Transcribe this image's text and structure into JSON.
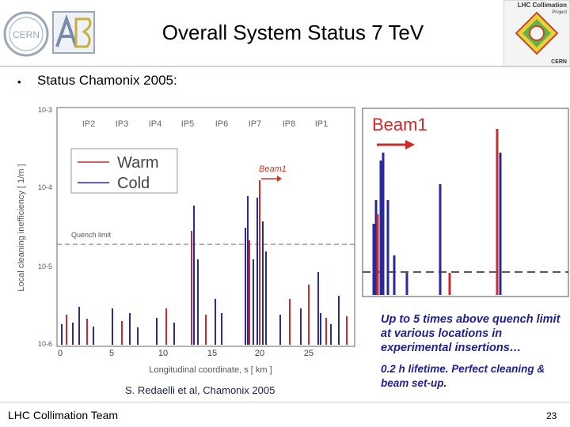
{
  "header": {
    "title": "Overall System Status 7 TeV",
    "logo_left_text": "CERN",
    "logo_right_text": "LHC Collimation",
    "logo_right_sub": "Project",
    "logo_right_cern": "CERN"
  },
  "bullet": {
    "symbol": "•",
    "text": "Status Chamonix 2005:"
  },
  "main_plot": {
    "ylabel": "Local cleaning inefficiency [ 1/m ]",
    "xlabel": "Longitudinal coordinate, s [ km ]",
    "ip_labels": [
      "IP2",
      "IP3",
      "IP4",
      "IP5",
      "IP6",
      "IP7",
      "IP8",
      "IP1"
    ],
    "x_ticks": [
      "0",
      "5",
      "10",
      "15",
      "20",
      "25"
    ],
    "y_ticks": [
      "10-3",
      "10-4",
      "10-5",
      "10-6"
    ],
    "legend": [
      "Warm",
      "Cold"
    ],
    "beam_label": "Beam1",
    "quench_label": "Quench limit",
    "credit": "S. Redaelli et al, Chamonix 2005",
    "colors": {
      "warm": "#cc2a2a",
      "cold": "#2a2a9a",
      "quench": "#666666"
    }
  },
  "inset_plot": {
    "beam_label": "Beam1"
  },
  "notes": {
    "note1": "Up to 5 times above quench limit at various locations in experimental insertions…",
    "note2": "0.2 h lifetime. Perfect cleaning & beam set-up."
  },
  "footer": {
    "left": "LHC Collimation Team",
    "page": "23"
  }
}
